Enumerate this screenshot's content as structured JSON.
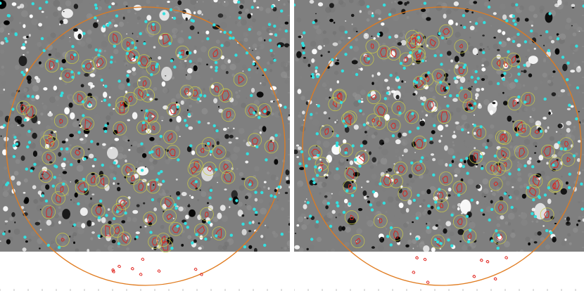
{
  "panels": [
    {
      "label": "",
      "image_description_colors": {
        "background": "#7f7f7f",
        "positive_flux": "#ffffff",
        "negative_flux": "#000000",
        "circle_outline": "#e07b1f",
        "feature_contours": "#e0201a",
        "feature_markers": "#c9c94a",
        "points": "#33e0e0"
      }
    },
    {
      "label": "",
      "image_description_colors": {
        "background": "#7f7f7f",
        "positive_flux": "#ffffff",
        "negative_flux": "#000000",
        "circle_outline": "#e07b1f",
        "feature_contours": "#e0201a",
        "feature_markers": "#c9c94a",
        "points": "#33e0e0"
      }
    }
  ]
}
